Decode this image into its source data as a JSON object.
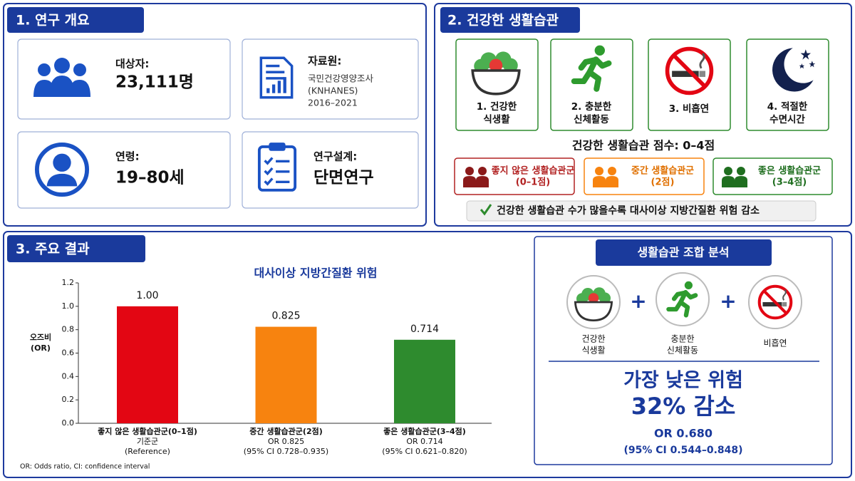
{
  "overview": {
    "title": "1. 연구 개요",
    "cards": [
      {
        "label": "대상자:",
        "value": "23,111명"
      },
      {
        "label": "자료원:",
        "lines": [
          "국민건강영양조사",
          "(KNHANES)",
          "2016–2021"
        ]
      },
      {
        "label": "연령:",
        "value": "19–80세"
      },
      {
        "label": "연구설계:",
        "value": "단면연구"
      }
    ]
  },
  "habits": {
    "title": "2. 건강한 생활습관",
    "items": [
      [
        "1. 건강한",
        "식생활"
      ],
      [
        "2. 충분한",
        "신체활동"
      ],
      [
        "3. 비흡연"
      ],
      [
        "4. 적절한",
        "수면시간"
      ]
    ],
    "score": "건강한 생활습관 점수: 0–4점",
    "groups": [
      [
        "좋지 않은 생활습관군",
        "(0–1점)"
      ],
      [
        "중간 생활습관군",
        "(2점)"
      ],
      [
        "좋은 생활습관군",
        "(3–4점)"
      ]
    ],
    "note": "건강한 생활습관 수가 많을수록 대사이상 지방간질환 위험 감소"
  },
  "results": {
    "title": "3. 주요 결과",
    "footnote": "OR: Odds ratio, CI: confidence interval",
    "combo": {
      "title": "생활습관 조합 분석",
      "items": [
        [
          "건강한",
          "식생활"
        ],
        [
          "충분한",
          "신체활동"
        ],
        [
          "비흡연"
        ]
      ],
      "headline": "가장 낮은 위험",
      "reduction": "32% 감소",
      "or": "OR 0.680",
      "ci": "(95% CI 0.544–0.848)"
    }
  },
  "chart_data": {
    "type": "bar",
    "title": "대사이상 지방간질환 위험",
    "y_label": [
      "오즈비",
      "(OR)"
    ],
    "categories": [
      "좋지 않은 생활습관군(0–1점)",
      "중간 생활습관군(2점)",
      "좋은 생활습관군(3–4점)"
    ],
    "category_notes": [
      [
        "기준군",
        "(Reference)"
      ],
      [
        "OR 0.825",
        "(95% CI 0.728–0.935)"
      ],
      [
        "OR 0.714",
        "(95% CI 0.621–0.820)"
      ]
    ],
    "values": [
      1.0,
      0.825,
      0.714
    ],
    "value_labels": [
      "1.00",
      "0.825",
      "0.714"
    ],
    "colors": [
      "#e30613",
      "#f7830f",
      "#2e8b2e"
    ],
    "ylim": [
      0,
      1.2
    ],
    "yticks": [
      {
        "value": 0,
        "label": "0.0"
      },
      0.2,
      0.4,
      0.6,
      0.8,
      {
        "value": 1,
        "label": "1.0"
      },
      1.2
    ]
  }
}
